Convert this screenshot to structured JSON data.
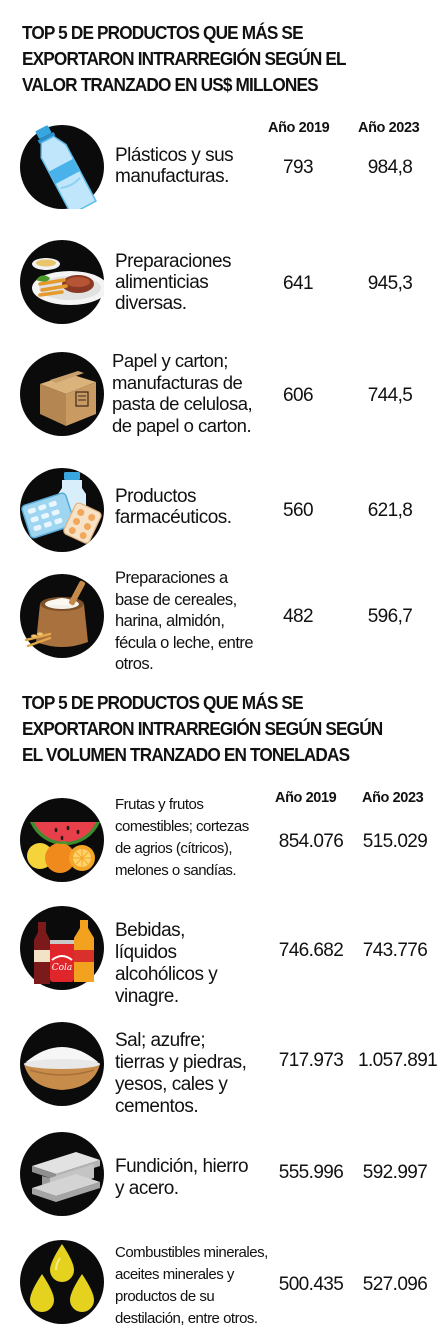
{
  "section1": {
    "title": "TOP 5 DE PRODUCTOS QUE MÁS SE EXPORTARON INTRARREGIÓN SEGÚN EL VALOR TRANZADO EN US$ MILLONES",
    "col_2019": "Año 2019",
    "col_2023": "Año 2023",
    "rows": [
      {
        "icon": "plastic-bottle-icon",
        "label": "Plásticos y sus manufacturas.",
        "v2019": "793",
        "v2023": "984,8"
      },
      {
        "icon": "food-plate-icon",
        "label": "Preparaciones alimenticias diversas.",
        "v2019": "641",
        "v2023": "945,3"
      },
      {
        "icon": "cardboard-box-icon",
        "label": "Papel y carton; manufacturas de pasta de celulosa, de papel o carton.",
        "v2019": "606",
        "v2023": "744,5"
      },
      {
        "icon": "pills-icon",
        "label": "Productos farmacéuticos.",
        "v2019": "560",
        "v2023": "621,8"
      },
      {
        "icon": "flour-sack-icon",
        "label": "Preparaciones a base de cereales, harina, almidón, fécula o leche, entre otros.",
        "v2019": "482",
        "v2023": "596,7"
      }
    ]
  },
  "section2": {
    "title": "TOP 5 DE PRODUCTOS QUE MÁS SE EXPORTARON INTRARREGIÓN SEGÚN SEGÚN EL VOLUMEN TRANZADO EN TONELADAS",
    "col_2019": "Año 2019",
    "col_2023": "Año 2023",
    "rows": [
      {
        "icon": "fruits-icon",
        "label": "Frutas y frutos comestibles; cortezas de agrios (cítricos), melones o sandías.",
        "v2019": "854.076",
        "v2023": "515.029"
      },
      {
        "icon": "beverages-icon",
        "label": "Bebidas, líquidos alcohólicos y vinagre.",
        "v2019": "746.682",
        "v2023": "743.776"
      },
      {
        "icon": "salt-bowl-icon",
        "label": "Sal; azufre; tierras y piedras, yesos, cales y cementos.",
        "v2019": "717.973",
        "v2023": "1.057.891"
      },
      {
        "icon": "steel-beam-icon",
        "label": "Fundición, hierro y acero.",
        "v2019": "555.996",
        "v2023": "592.997"
      },
      {
        "icon": "oil-drops-icon",
        "label": "Combustibles minerales, aceites minerales y productos de su destilación, entre otros.",
        "v2019": "500.435",
        "v2023": "527.096"
      }
    ]
  }
}
